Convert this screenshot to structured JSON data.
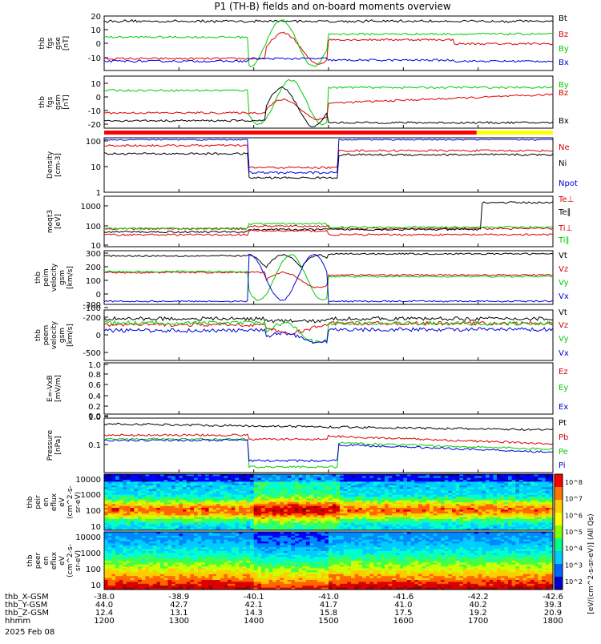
{
  "title": "P1 (TH-B) fields and on-board moments overview",
  "date_label": "2025 Feb 08",
  "colorbar": {
    "label": "[eV/(cm^2-s-sr-eV)] (All Qs)",
    "ticks": [
      "10^8",
      "10^7",
      "10^6",
      "10^5",
      "10^4",
      "10^3",
      "10^2"
    ]
  },
  "ephemeris": {
    "rows": [
      {
        "label": "thb_X-GSM",
        "values": [
          "-38.0",
          "-38.9",
          "-40.1",
          "-41.0",
          "-41.6",
          "-42.2",
          "-42.6"
        ]
      },
      {
        "label": "thb_Y-GSM",
        "values": [
          "44.0",
          "42.7",
          "42.1",
          "41.7",
          "41.0",
          "40.2",
          "39.3"
        ]
      },
      {
        "label": "thb_Z-GSM",
        "values": [
          "12.4",
          "13.1",
          "14.3",
          "15.8",
          "17.5",
          "19.2",
          "20.9"
        ]
      },
      {
        "label": "hhmm",
        "values": [
          "1200",
          "1300",
          "1400",
          "1500",
          "1600",
          "1700",
          "1800"
        ]
      }
    ]
  },
  "chart_data": [
    {
      "type": "line",
      "ylabel_lines": [
        "thb",
        "fgs",
        "gse",
        "[nT]"
      ],
      "ylim": [
        -20,
        20
      ],
      "yticks": [
        "20",
        "10",
        "0",
        "-10"
      ],
      "series": [
        {
          "name": "Bt",
          "color": "#000000"
        },
        {
          "name": "Bz",
          "color": "#dd0000"
        },
        {
          "name": "By",
          "color": "#00cc00"
        },
        {
          "name": "Bx",
          "color": "#0000dd"
        }
      ]
    },
    {
      "type": "line",
      "ylabel_lines": [
        "thb",
        "fgs",
        "gsm",
        "[nT]"
      ],
      "ylim": [
        -25,
        20
      ],
      "yticks": [
        "10",
        "0",
        "-10",
        "-20"
      ],
      "series": [
        {
          "name": "By",
          "color": "#00cc00"
        },
        {
          "name": "Bz",
          "color": "#dd0000"
        },
        {
          "name": "Bx",
          "color": "#000000"
        }
      ]
    },
    {
      "type": "line",
      "ylabel_lines": [
        "Density",
        "[cm-3]"
      ],
      "yscale": "log",
      "yticks": [
        "100",
        "10",
        "1"
      ],
      "series": [
        {
          "name": "Ne",
          "color": "#dd0000"
        },
        {
          "name": "Ni",
          "color": "#000000"
        },
        {
          "name": "Npot",
          "color": "#0000dd"
        }
      ]
    },
    {
      "type": "line",
      "ylabel_lines": [
        "moqt3",
        "[eV]"
      ],
      "yscale": "log",
      "yticks": [
        "1000",
        "100",
        "10"
      ],
      "series": [
        {
          "name": "Te⊥",
          "color": "#dd0000"
        },
        {
          "name": "Te∥",
          "color": "#000000"
        },
        {
          "name": "Ti⊥",
          "color": "#dd0000"
        },
        {
          "name": "Ti∥",
          "color": "#00cc00"
        }
      ]
    },
    {
      "type": "line",
      "ylabel_lines": [
        "thb",
        "peim",
        "velocity",
        "gsm",
        "[km/s]"
      ],
      "ylim": [
        -300,
        300
      ],
      "yticks": [
        "300",
        "200",
        "100",
        "0",
        "-100",
        "-200",
        "-300"
      ],
      "series": [
        {
          "name": "Vt",
          "color": "#000000"
        },
        {
          "name": "Vz",
          "color": "#dd0000"
        },
        {
          "name": "Vy",
          "color": "#00cc00"
        },
        {
          "name": "Vx",
          "color": "#0000dd"
        }
      ]
    },
    {
      "type": "line",
      "ylabel_lines": [
        "thb",
        "peem",
        "velocity",
        "gsm",
        "[km/s]"
      ],
      "ylim": [
        -600,
        200
      ],
      "yticks": [
        "0",
        "-500"
      ],
      "series": [
        {
          "name": "Vt",
          "color": "#000000"
        },
        {
          "name": "Vz",
          "color": "#dd0000"
        },
        {
          "name": "Vy",
          "color": "#00cc00"
        },
        {
          "name": "Vx",
          "color": "#0000dd"
        }
      ]
    },
    {
      "type": "line",
      "ylabel_lines": [
        "E=-VxB",
        "[mV/m]"
      ],
      "ylim": [
        0,
        1
      ],
      "yticks": [
        "1.0",
        "0.8",
        "0.6",
        "0.4",
        "0.2",
        "0.0"
      ],
      "series": [
        {
          "name": "Ez",
          "color": "#dd0000"
        },
        {
          "name": "Ey",
          "color": "#00cc00"
        },
        {
          "name": "Ex",
          "color": "#0000dd"
        }
      ]
    },
    {
      "type": "line",
      "ylabel_lines": [
        "Pressure",
        "[nPa]"
      ],
      "yscale": "log",
      "yticks": [
        "1.0",
        "0.1"
      ],
      "series": [
        {
          "name": "Pt",
          "color": "#000000"
        },
        {
          "name": "Pb",
          "color": "#dd0000"
        },
        {
          "name": "Pe",
          "color": "#00cc00"
        },
        {
          "name": "Pi",
          "color": "#0000dd"
        }
      ]
    },
    {
      "type": "heatmap",
      "ylabel_lines": [
        "thb",
        "peir",
        "en",
        "eflux",
        "eV",
        "(cm^2-s-",
        "sr-eV)"
      ],
      "yscale": "log",
      "yticks": [
        "10000",
        "1000",
        "100",
        "10"
      ]
    },
    {
      "type": "heatmap",
      "ylabel_lines": [
        "thb",
        "peer",
        "en",
        "eflux",
        "eV",
        "(cm^2-s-",
        "sr-eV)"
      ],
      "yscale": "log",
      "yticks": [
        "10000",
        "1000",
        "100",
        "10"
      ]
    }
  ]
}
